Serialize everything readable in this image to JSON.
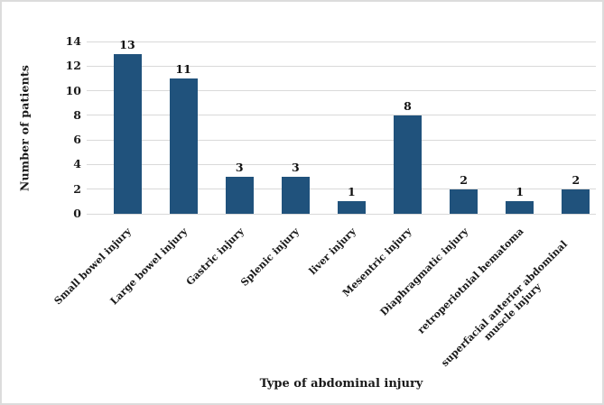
{
  "figure": {
    "background": "#ffffff",
    "border_color": "#dcdcdc",
    "text_color": "#1a1a1a"
  },
  "chart_data": {
    "type": "bar",
    "title": "",
    "xlabel": "Type of abdominal injury",
    "ylabel": "Number of patients",
    "categories": [
      "Small bowel injury",
      "Large bowel injury",
      "Gastric injury",
      "Splenic injury",
      "liver injury",
      "Mesentric injury",
      "Diaphragmatic injury",
      "retroperiotnial hematoma",
      "superfacial anterior abdominal muscle injury"
    ],
    "values": [
      13,
      11,
      3,
      3,
      1,
      8,
      2,
      1,
      2
    ],
    "ylim": [
      0,
      14
    ],
    "yticks": [
      0,
      2,
      4,
      6,
      8,
      10,
      12,
      14
    ],
    "grid": true,
    "legend": "none",
    "bar_color": "#20527c",
    "gridline_color": "#d9d9d9",
    "x_tick_rotation_deg": 45,
    "data_labels_shown": true
  }
}
